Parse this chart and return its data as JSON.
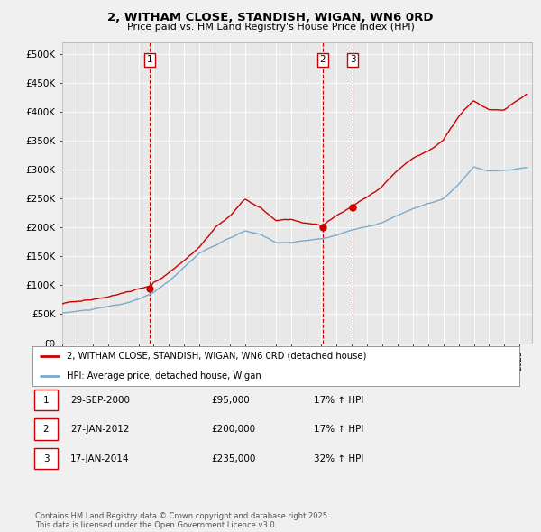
{
  "title": "2, WITHAM CLOSE, STANDISH, WIGAN, WN6 0RD",
  "subtitle": "Price paid vs. HM Land Registry's House Price Index (HPI)",
  "ylabel_ticks": [
    "£0",
    "£50K",
    "£100K",
    "£150K",
    "£200K",
    "£250K",
    "£300K",
    "£350K",
    "£400K",
    "£450K",
    "£500K"
  ],
  "ytick_values": [
    0,
    50000,
    100000,
    150000,
    200000,
    250000,
    300000,
    350000,
    400000,
    450000,
    500000
  ],
  "ylim": [
    0,
    520000
  ],
  "xlim_start": 1995.0,
  "xlim_end": 2025.8,
  "transactions": [
    {
      "date": 2000.75,
      "price": 95000,
      "label": "1"
    },
    {
      "date": 2012.08,
      "price": 200000,
      "label": "2"
    },
    {
      "date": 2014.05,
      "price": 235000,
      "label": "3"
    }
  ],
  "vline_dates": [
    2000.75,
    2012.08,
    2014.05
  ],
  "legend_line1": "2, WITHAM CLOSE, STANDISH, WIGAN, WN6 0RD (detached house)",
  "legend_line2": "HPI: Average price, detached house, Wigan",
  "table_rows": [
    {
      "num": "1",
      "date": "29-SEP-2000",
      "price": "£95,000",
      "change": "17% ↑ HPI"
    },
    {
      "num": "2",
      "date": "27-JAN-2012",
      "price": "£200,000",
      "change": "17% ↑ HPI"
    },
    {
      "num": "3",
      "date": "17-JAN-2014",
      "price": "£235,000",
      "change": "32% ↑ HPI"
    }
  ],
  "footer": "Contains HM Land Registry data © Crown copyright and database right 2025.\nThis data is licensed under the Open Government Licence v3.0.",
  "red_color": "#cc0000",
  "blue_color": "#7aaacc",
  "bg_color": "#f0f0f0",
  "chart_bg": "#e8e8e8",
  "grid_color": "#ffffff"
}
